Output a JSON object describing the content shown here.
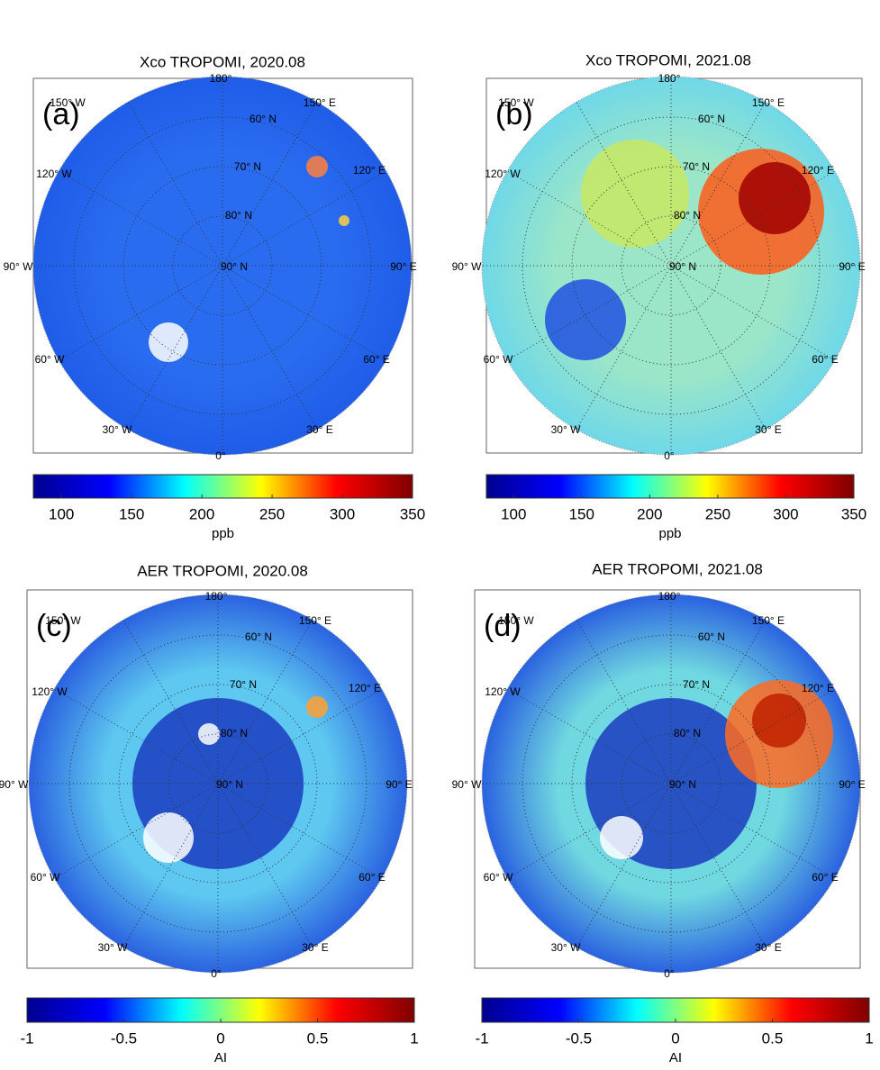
{
  "colormap": [
    "#00008f",
    "#0000ff",
    "#00ffff",
    "#ffff00",
    "#ff0000",
    "#800000"
  ],
  "panels": [
    {
      "title": "Xco TROPOMI, 2020.08",
      "label": "(a)",
      "colorbar": {
        "range": [
          80,
          350
        ],
        "ticks": [
          100,
          150,
          200,
          250,
          300,
          350
        ],
        "label": "ppb"
      }
    },
    {
      "title": "Xco TROPOMI, 2021.08",
      "label": "(b)",
      "colorbar": {
        "range": [
          80,
          350
        ],
        "ticks": [
          100,
          150,
          200,
          250,
          300,
          350
        ],
        "label": "ppb"
      }
    },
    {
      "title": "AER TROPOMI, 2020.08",
      "label": "(c)",
      "colorbar": {
        "range": [
          -1,
          1
        ],
        "ticks": [
          -1,
          -0.5,
          0,
          0.5,
          1
        ],
        "label": "AI"
      }
    },
    {
      "title": "AER TROPOMI, 2021.08",
      "label": "(d)",
      "colorbar": {
        "range": [
          -1,
          1
        ],
        "ticks": [
          -1,
          -0.5,
          0,
          0.5,
          1
        ],
        "label": "AI"
      }
    }
  ],
  "map_labels": [
    "180°",
    "150° W",
    "60° N",
    "150° E",
    "120° W",
    "70° N",
    "120° E",
    "80° N",
    "90° W",
    "90° N",
    "90° E",
    "60° W",
    "60° E",
    "30° W",
    "30° E",
    "0°"
  ]
}
